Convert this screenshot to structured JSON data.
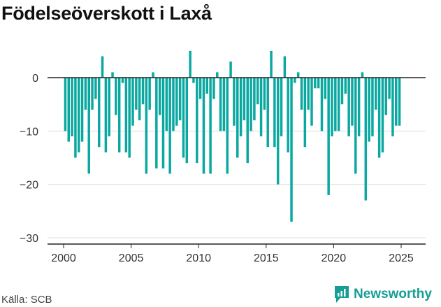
{
  "title": "Födelseöverskott i Laxå",
  "source": "Källa: SCB",
  "brand": "Newsworthy",
  "colors": {
    "bar": "#0aa8a0",
    "brand": "#149e94"
  },
  "chart_data": {
    "type": "bar",
    "title": "Födelseöverskott i Laxå",
    "xlabel": "",
    "ylabel": "",
    "ylim": [
      -31,
      6
    ],
    "y_ticks": [
      0,
      -10,
      -20,
      -30
    ],
    "y_tick_labels": [
      "0",
      "−10",
      "−20",
      "−30"
    ],
    "xlim": [
      2000.0,
      2026.0
    ],
    "x_ticks": [
      2000,
      2005,
      2010,
      2015,
      2020,
      2025
    ],
    "x_tick_labels": [
      "2000",
      "2005",
      "2010",
      "2015",
      "2020",
      "2025"
    ],
    "grid": true,
    "frequency": "quarterly",
    "series": [
      {
        "start_year": 2000,
        "values": [
          -10,
          -12,
          -11,
          -15,
          -14,
          -12,
          -6,
          -18,
          -6,
          -4,
          -13,
          4,
          -14,
          -11,
          1,
          -7,
          -14,
          -1,
          -14,
          -15,
          -9,
          -6,
          -8,
          -5,
          -18,
          -6,
          1,
          -17,
          -7,
          -17,
          -10,
          -18,
          -10,
          -9,
          -8,
          -15,
          -16,
          5,
          -1,
          -16,
          -4,
          -18,
          -3,
          -18,
          -4,
          1,
          -10,
          -10,
          -18,
          3,
          -9,
          -15,
          -11,
          -8,
          -16,
          -10,
          -8,
          -5,
          -11,
          -6,
          -13,
          5,
          -13,
          -20,
          -11,
          4,
          -14,
          -27,
          -1,
          1,
          -6,
          -13,
          -6,
          -9,
          -2,
          -2,
          -10,
          -4,
          -22,
          -11,
          -10,
          -10,
          -5,
          -3,
          -11,
          -9,
          -18,
          -11,
          1,
          -23,
          -12,
          -11,
          -6,
          -15,
          -14,
          -7,
          -4,
          -11,
          -9,
          -9
        ]
      }
    ]
  }
}
